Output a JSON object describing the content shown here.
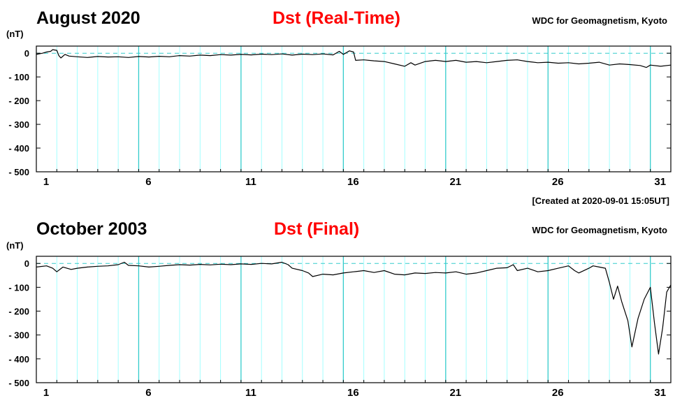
{
  "chart_data": [
    {
      "type": "line",
      "title": "August 2020",
      "subtitle": "Dst (Real-Time)",
      "source": "WDC for Geomagnetism, Kyoto",
      "ylabel": "(nT)",
      "ylim": [
        -500,
        30
      ],
      "yticks": [
        0,
        -100,
        -200,
        -300,
        -400,
        -500
      ],
      "xlim": [
        1,
        32
      ],
      "xticks": [
        1,
        6,
        11,
        16,
        21,
        26,
        31
      ],
      "grid": true,
      "note": "[Created at 2020-09-01 15:05UT]",
      "colors": {
        "line": "#000000",
        "grid": "#99ffff",
        "major_grid": "#33cccc",
        "subtitle": "#ff0000"
      },
      "series": [
        {
          "points": [
            [
              1.0,
              -5
            ],
            [
              1.3,
              0
            ],
            [
              1.5,
              5
            ],
            [
              1.7,
              8
            ],
            [
              1.8,
              15
            ],
            [
              2.0,
              12
            ],
            [
              2.1,
              -10
            ],
            [
              2.2,
              -20
            ],
            [
              2.4,
              -5
            ],
            [
              2.6,
              -12
            ],
            [
              3,
              -15
            ],
            [
              3.5,
              -18
            ],
            [
              4,
              -14
            ],
            [
              4.5,
              -16
            ],
            [
              5,
              -15
            ],
            [
              5.5,
              -18
            ],
            [
              6,
              -14
            ],
            [
              6.5,
              -16
            ],
            [
              7,
              -13
            ],
            [
              7.5,
              -15
            ],
            [
              8,
              -10
            ],
            [
              8.5,
              -12
            ],
            [
              9,
              -8
            ],
            [
              9.5,
              -10
            ],
            [
              10,
              -6
            ],
            [
              10.5,
              -8
            ],
            [
              11,
              -5
            ],
            [
              11.5,
              -7
            ],
            [
              12,
              -4
            ],
            [
              12.5,
              -6
            ],
            [
              13,
              -3
            ],
            [
              13.5,
              -8
            ],
            [
              14,
              -4
            ],
            [
              14.5,
              -6
            ],
            [
              15,
              -3
            ],
            [
              15.5,
              -7
            ],
            [
              15.8,
              8
            ],
            [
              16,
              -5
            ],
            [
              16.3,
              10
            ],
            [
              16.5,
              5
            ],
            [
              16.6,
              -30
            ],
            [
              17,
              -28
            ],
            [
              17.5,
              -32
            ],
            [
              18,
              -35
            ],
            [
              18.5,
              -45
            ],
            [
              19,
              -55
            ],
            [
              19.3,
              -40
            ],
            [
              19.5,
              -50
            ],
            [
              20,
              -35
            ],
            [
              20.5,
              -30
            ],
            [
              21,
              -35
            ],
            [
              21.5,
              -30
            ],
            [
              22,
              -38
            ],
            [
              22.5,
              -35
            ],
            [
              23,
              -40
            ],
            [
              23.5,
              -35
            ],
            [
              24,
              -30
            ],
            [
              24.5,
              -28
            ],
            [
              25,
              -35
            ],
            [
              25.5,
              -40
            ],
            [
              26,
              -38
            ],
            [
              26.5,
              -42
            ],
            [
              27,
              -40
            ],
            [
              27.5,
              -45
            ],
            [
              28,
              -42
            ],
            [
              28.5,
              -38
            ],
            [
              29,
              -50
            ],
            [
              29.5,
              -45
            ],
            [
              30,
              -48
            ],
            [
              30.5,
              -52
            ],
            [
              30.8,
              -60
            ],
            [
              31,
              -50
            ],
            [
              31.5,
              -55
            ],
            [
              32,
              -50
            ]
          ]
        }
      ]
    },
    {
      "type": "line",
      "title": "October 2003",
      "subtitle": "Dst (Final)",
      "source": "WDC for Geomagnetism, Kyoto",
      "ylabel": "(nT)",
      "ylim": [
        -500,
        30
      ],
      "yticks": [
        0,
        -100,
        -200,
        -300,
        -400,
        -500
      ],
      "xlim": [
        1,
        32
      ],
      "xticks": [
        1,
        6,
        11,
        16,
        21,
        26,
        31
      ],
      "grid": true,
      "colors": {
        "line": "#000000",
        "grid": "#99ffff",
        "major_grid": "#33cccc",
        "subtitle": "#ff0000"
      },
      "series": [
        {
          "points": [
            [
              1.0,
              -15
            ],
            [
              1.5,
              -10
            ],
            [
              1.8,
              -20
            ],
            [
              2.0,
              -35
            ],
            [
              2.3,
              -15
            ],
            [
              2.7,
              -25
            ],
            [
              3,
              -20
            ],
            [
              3.5,
              -15
            ],
            [
              4,
              -12
            ],
            [
              4.5,
              -10
            ],
            [
              5,
              -5
            ],
            [
              5.3,
              5
            ],
            [
              5.5,
              -8
            ],
            [
              6,
              -10
            ],
            [
              6.5,
              -15
            ],
            [
              7,
              -12
            ],
            [
              7.5,
              -8
            ],
            [
              8,
              -5
            ],
            [
              8.5,
              -7
            ],
            [
              9,
              -4
            ],
            [
              9.5,
              -6
            ],
            [
              10,
              -3
            ],
            [
              10.5,
              -5
            ],
            [
              11,
              -2
            ],
            [
              11.5,
              -4
            ],
            [
              12,
              0
            ],
            [
              12.5,
              -2
            ],
            [
              13,
              5
            ],
            [
              13.3,
              -5
            ],
            [
              13.5,
              -20
            ],
            [
              14,
              -30
            ],
            [
              14.3,
              -40
            ],
            [
              14.5,
              -55
            ],
            [
              15,
              -45
            ],
            [
              15.5,
              -48
            ],
            [
              16,
              -40
            ],
            [
              16.5,
              -35
            ],
            [
              17,
              -30
            ],
            [
              17.5,
              -38
            ],
            [
              18,
              -30
            ],
            [
              18.5,
              -45
            ],
            [
              19,
              -48
            ],
            [
              19.5,
              -40
            ],
            [
              20,
              -42
            ],
            [
              20.5,
              -38
            ],
            [
              21,
              -40
            ],
            [
              21.5,
              -35
            ],
            [
              22,
              -45
            ],
            [
              22.5,
              -40
            ],
            [
              23,
              -30
            ],
            [
              23.5,
              -20
            ],
            [
              24,
              -18
            ],
            [
              24.3,
              -5
            ],
            [
              24.5,
              -30
            ],
            [
              25,
              -20
            ],
            [
              25.5,
              -35
            ],
            [
              26,
              -30
            ],
            [
              26.5,
              -20
            ],
            [
              27,
              -10
            ],
            [
              27.3,
              -30
            ],
            [
              27.5,
              -40
            ],
            [
              28,
              -20
            ],
            [
              28.2,
              -10
            ],
            [
              28.5,
              -15
            ],
            [
              28.8,
              -20
            ],
            [
              29.0,
              -80
            ],
            [
              29.2,
              -150
            ],
            [
              29.4,
              -95
            ],
            [
              29.6,
              -160
            ],
            [
              29.9,
              -240
            ],
            [
              30.1,
              -350
            ],
            [
              30.4,
              -230
            ],
            [
              30.7,
              -150
            ],
            [
              31.0,
              -100
            ],
            [
              31.2,
              -250
            ],
            [
              31.4,
              -380
            ],
            [
              31.6,
              -270
            ],
            [
              31.8,
              -120
            ],
            [
              32,
              -90
            ]
          ]
        }
      ]
    }
  ]
}
